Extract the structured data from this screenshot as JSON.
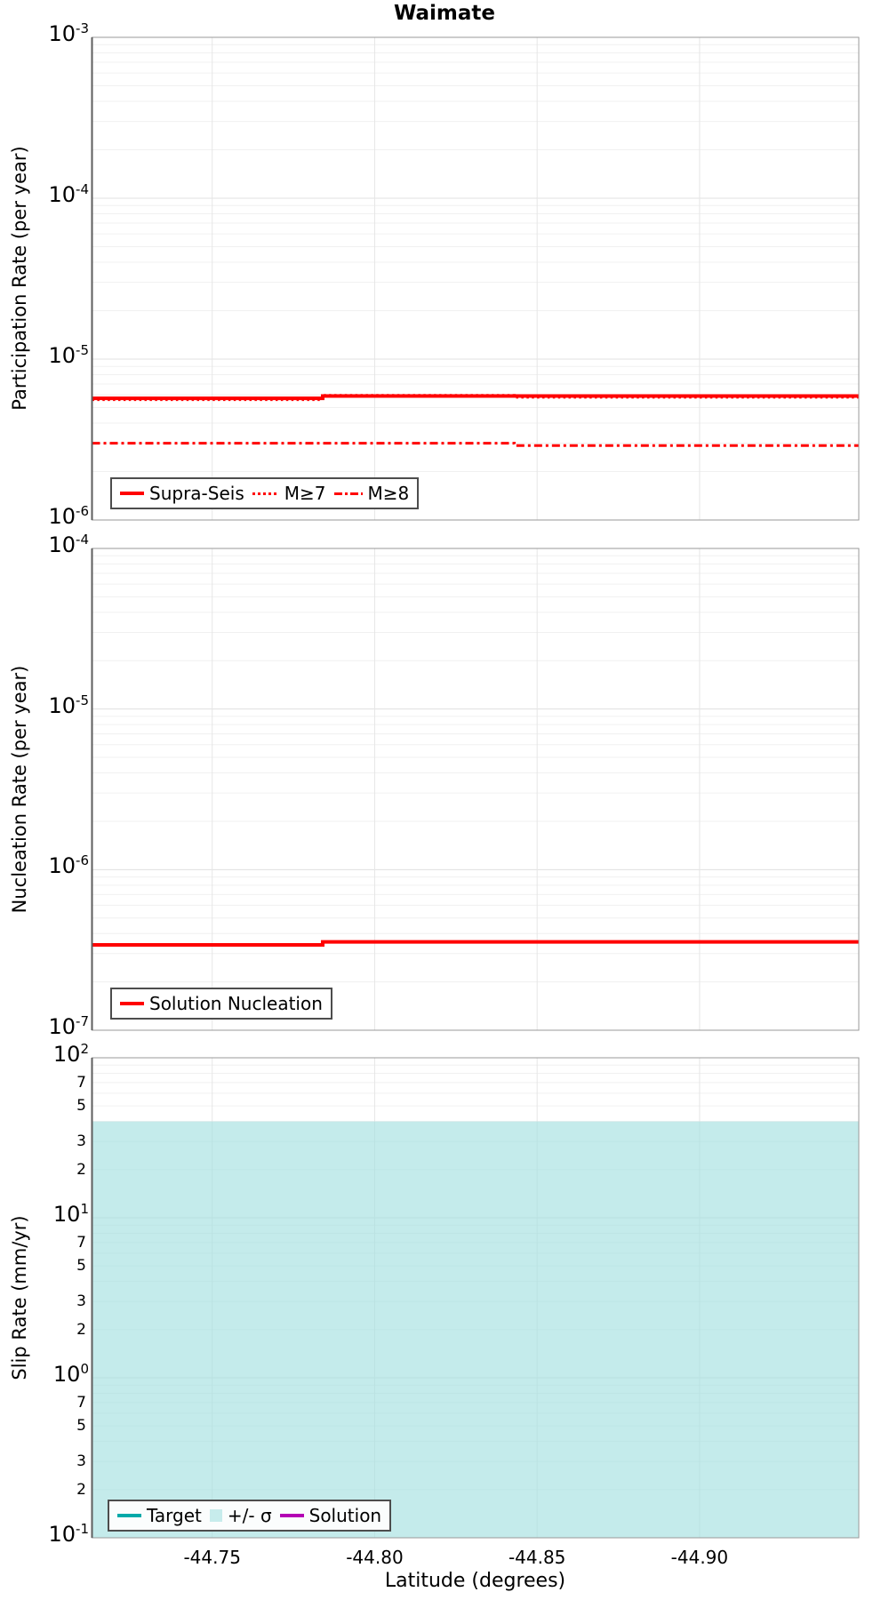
{
  "figure": {
    "title": "Waimate"
  },
  "x_axis": {
    "label": "Latitude (degrees)",
    "lim_left": -44.713,
    "lim_right": -44.949,
    "tick_values": [
      -44.75,
      -44.8,
      -44.85,
      -44.9
    ],
    "tick_labels": [
      "-44.75",
      "-44.80",
      "-44.85",
      "-44.90"
    ]
  },
  "colors": {
    "series_red": "#FF0000",
    "target_teal": "#00A9A9",
    "solution_magenta": "#B400B4",
    "sigma_band": "#C7ECEC",
    "grid_major": "#E0E0E0",
    "grid_minor": "#F0F0F0",
    "grid_vertical": "#E6E6E6",
    "panel_border": "#9A9A9A",
    "axis_dark_edge": "#5E5E5E"
  },
  "chart_data": [
    {
      "type": "line",
      "ylabel": "Participation Rate (per year)",
      "yscale": "log",
      "ylim": [
        1e-06,
        0.001
      ],
      "ytick_exponents": [
        -3,
        -4,
        -5,
        -6
      ],
      "grid": true,
      "legend_position": "bottom-left",
      "series": [
        {
          "name": "Supra-Seis",
          "style": "solid",
          "color": "#FF0000",
          "x": [
            -44.713,
            -44.784,
            -44.784,
            -44.949
          ],
          "y": [
            5.7e-06,
            5.7e-06,
            5.9e-06,
            5.9e-06
          ]
        },
        {
          "name": "M≥7",
          "style": "dotted",
          "color": "#FF0000",
          "x": [
            -44.713,
            -44.784,
            -44.784,
            -44.843,
            -44.843,
            -44.949
          ],
          "y": [
            5.6e-06,
            5.6e-06,
            5.95e-06,
            5.95e-06,
            5.8e-06,
            5.8e-06
          ]
        },
        {
          "name": "M≥8",
          "style": "dashdot",
          "color": "#FF0000",
          "x": [
            -44.713,
            -44.843,
            -44.843,
            -44.949
          ],
          "y": [
            3e-06,
            3e-06,
            2.9e-06,
            2.9e-06
          ]
        }
      ]
    },
    {
      "type": "line",
      "ylabel": "Nucleation Rate (per year)",
      "yscale": "log",
      "ylim": [
        1e-07,
        0.0001
      ],
      "ytick_exponents": [
        -4,
        -5,
        -6,
        -7
      ],
      "grid": true,
      "legend_position": "bottom-left",
      "series": [
        {
          "name": "Solution Nucleation",
          "style": "solid",
          "color": "#FF0000",
          "x": [
            -44.713,
            -44.784,
            -44.784,
            -44.949
          ],
          "y": [
            3.4e-07,
            3.4e-07,
            3.55e-07,
            3.55e-07
          ]
        }
      ]
    },
    {
      "type": "area",
      "ylabel": "Slip Rate (mm/yr)",
      "yscale": "log",
      "ylim": [
        0.1,
        100
      ],
      "ytick_exponents": [
        2,
        1,
        0,
        -1
      ],
      "minor_tick_labels": [
        7,
        5,
        3,
        2
      ],
      "grid": true,
      "legend_position": "bottom-left",
      "band": {
        "name": "+/- σ",
        "upper": 40,
        "lower": 0.1,
        "color": "#C7ECEC"
      },
      "series": [
        {
          "name": "Target",
          "style": "solid",
          "color": "#00A9A9",
          "visible_in_plot": false
        },
        {
          "name": "Solution",
          "style": "solid",
          "color": "#B400B4",
          "visible_in_plot": false
        }
      ]
    }
  ]
}
